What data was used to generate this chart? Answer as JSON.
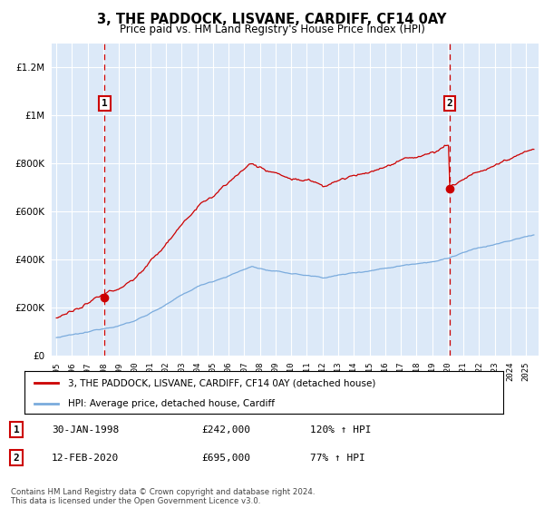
{
  "title": "3, THE PADDOCK, LISVANE, CARDIFF, CF14 0AY",
  "subtitle": "Price paid vs. HM Land Registry's House Price Index (HPI)",
  "background_color": "#ffffff",
  "plot_bg_color": "#dce9f8",
  "ylim": [
    0,
    1300000
  ],
  "yticks": [
    0,
    200000,
    400000,
    600000,
    800000,
    1000000,
    1200000
  ],
  "xlim_start": 1994.7,
  "xlim_end": 2025.8,
  "sale1_date": 1998.08,
  "sale1_price": 242000,
  "sale1_label": "1",
  "sale2_date": 2020.12,
  "sale2_price": 695000,
  "sale2_label": "2",
  "hpi_line_color": "#7aabdd",
  "price_line_color": "#cc0000",
  "dashed_line_color": "#cc0000",
  "legend_label_price": "3, THE PADDOCK, LISVANE, CARDIFF, CF14 0AY (detached house)",
  "legend_label_hpi": "HPI: Average price, detached house, Cardiff",
  "table_rows": [
    {
      "num": "1",
      "date": "30-JAN-1998",
      "price": "£242,000",
      "hpi": "120% ↑ HPI"
    },
    {
      "num": "2",
      "date": "12-FEB-2020",
      "price": "£695,000",
      "hpi": "77% ↑ HPI"
    }
  ],
  "footnote": "Contains HM Land Registry data © Crown copyright and database right 2024.\nThis data is licensed under the Open Government Licence v3.0."
}
